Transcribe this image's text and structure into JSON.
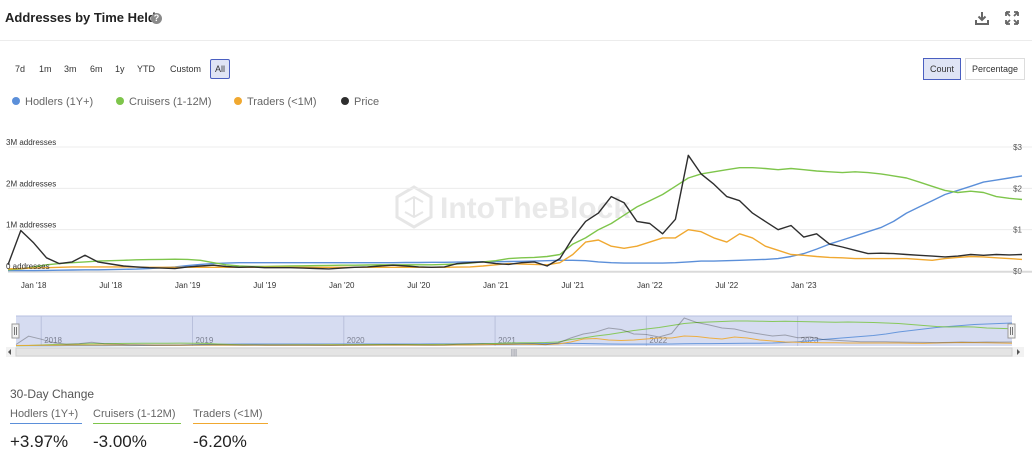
{
  "header": {
    "title": "Addresses by Time Held",
    "help_icon": "question-icon",
    "download_icon": "download-icon",
    "expand_icon": "expand-icon"
  },
  "range_buttons": [
    {
      "label": "7d",
      "active": false
    },
    {
      "label": "1m",
      "active": false
    },
    {
      "label": "3m",
      "active": false
    },
    {
      "label": "6m",
      "active": false
    },
    {
      "label": "1y",
      "active": false
    },
    {
      "label": "YTD",
      "active": false
    },
    {
      "label": "Custom",
      "active": false
    },
    {
      "label": "All",
      "active": true
    }
  ],
  "mode_buttons": [
    {
      "label": "Count",
      "active": true
    },
    {
      "label": "Percentage",
      "active": false
    }
  ],
  "watermark": "IntoTheBlock",
  "colors": {
    "hodlers": "#5b8fd9",
    "cruisers": "#7ec54b",
    "traders": "#f0a830",
    "price": "#2e2e2e",
    "navigator_mask": "#cfd6ee"
  },
  "chart_data": {
    "type": "line",
    "x_start": "2017-11",
    "x_interval": "1 month",
    "x_tick_labels": [
      "Jan '18",
      "Jul '18",
      "Jan '19",
      "Jul '19",
      "Jan '20",
      "Jul '20",
      "Jan '21",
      "Jul '21",
      "Jan '22",
      "Jul '22",
      "Jan '23"
    ],
    "y_left_tick_labels": [
      "0 addresses",
      "1M addresses",
      "2M addresses",
      "3M addresses"
    ],
    "y_left_range": [
      0,
      3000000
    ],
    "y_right_tick_labels": [
      "$0",
      "$1",
      "$2",
      "$3"
    ],
    "y_right_range": [
      0,
      3
    ],
    "grid": true,
    "legend_position": "top-left",
    "series": [
      {
        "name": "Hodlers (1Y+)",
        "axis": "left",
        "values": [
          10000,
          10000,
          10000,
          15000,
          20000,
          25000,
          30000,
          30000,
          35000,
          40000,
          45000,
          60000,
          80000,
          100000,
          130000,
          160000,
          180000,
          190000,
          200000,
          200000,
          200000,
          200000,
          200000,
          200000,
          200000,
          200000,
          200000,
          200000,
          200000,
          200000,
          200000,
          205000,
          205000,
          210000,
          210000,
          215000,
          220000,
          225000,
          225000,
          230000,
          235000,
          240000,
          250000,
          260000,
          260000,
          250000,
          220000,
          200000,
          190000,
          190000,
          190000,
          190000,
          200000,
          220000,
          240000,
          240000,
          250000,
          260000,
          270000,
          280000,
          300000,
          350000,
          420000,
          530000,
          650000,
          750000,
          850000,
          950000,
          1050000,
          1200000,
          1400000,
          1550000,
          1700000,
          1850000,
          1950000,
          2050000,
          2150000,
          2200000,
          2250000,
          2300000
        ]
      },
      {
        "name": "Cruisers (1-12M)",
        "axis": "left",
        "values": [
          30000,
          50000,
          100000,
          150000,
          180000,
          200000,
          220000,
          240000,
          250000,
          260000,
          270000,
          275000,
          280000,
          285000,
          280000,
          260000,
          200000,
          150000,
          120000,
          110000,
          110000,
          115000,
          120000,
          125000,
          130000,
          135000,
          140000,
          140000,
          145000,
          150000,
          150000,
          150000,
          150000,
          150000,
          160000,
          170000,
          190000,
          220000,
          250000,
          300000,
          320000,
          330000,
          350000,
          400000,
          650000,
          800000,
          1000000,
          1150000,
          1350000,
          1550000,
          1700000,
          1850000,
          2050000,
          2250000,
          2350000,
          2400000,
          2450000,
          2500000,
          2500000,
          2480000,
          2450000,
          2480000,
          2450000,
          2420000,
          2400000,
          2380000,
          2400000,
          2380000,
          2350000,
          2300000,
          2250000,
          2150000,
          2050000,
          1950000,
          1900000,
          1930000,
          1900000,
          1800000,
          1760000,
          1730000
        ]
      },
      {
        "name": "Traders (<1M)",
        "axis": "left",
        "values": [
          50000,
          60000,
          70000,
          80000,
          90000,
          100000,
          100000,
          100000,
          100000,
          100000,
          95000,
          90000,
          90000,
          90000,
          90000,
          90000,
          90000,
          90000,
          90000,
          90000,
          90000,
          90000,
          90000,
          90000,
          90000,
          90000,
          90000,
          90000,
          90000,
          90000,
          90000,
          90000,
          90000,
          90000,
          90000,
          95000,
          100000,
          120000,
          150000,
          180000,
          170000,
          160000,
          150000,
          200000,
          400000,
          700000,
          750000,
          600000,
          550000,
          600000,
          700000,
          800000,
          800000,
          1000000,
          950000,
          800000,
          700000,
          900000,
          800000,
          600000,
          500000,
          400000,
          380000,
          350000,
          330000,
          320000,
          300000,
          300000,
          300000,
          300000,
          300000,
          280000,
          260000,
          300000,
          330000,
          350000,
          340000,
          320000,
          300000,
          280000
        ]
      },
      {
        "name": "Price",
        "axis": "right",
        "values": [
          0.15,
          0.98,
          0.68,
          0.32,
          0.18,
          0.22,
          0.38,
          0.22,
          0.17,
          0.12,
          0.1,
          0.08,
          0.07,
          0.06,
          0.1,
          0.12,
          0.14,
          0.11,
          0.09,
          0.1,
          0.08,
          0.08,
          0.08,
          0.07,
          0.06,
          0.05,
          0.07,
          0.09,
          0.1,
          0.12,
          0.14,
          0.12,
          0.1,
          0.09,
          0.1,
          0.18,
          0.2,
          0.22,
          0.18,
          0.16,
          0.2,
          0.22,
          0.12,
          0.3,
          0.8,
          1.2,
          1.4,
          1.8,
          1.65,
          1.2,
          1.15,
          0.9,
          1.25,
          2.8,
          2.35,
          2.1,
          1.8,
          1.7,
          1.4,
          1.2,
          1.0,
          1.1,
          0.82,
          0.9,
          0.65,
          0.58,
          0.5,
          0.42,
          0.43,
          0.42,
          0.4,
          0.38,
          0.36,
          0.34,
          0.36,
          0.4,
          0.38,
          0.4,
          0.39,
          0.4
        ]
      }
    ]
  },
  "navigator": {
    "year_labels": [
      "2018",
      "2019",
      "2020",
      "2021",
      "2022",
      "2023"
    ],
    "scroll_grip": "|||"
  },
  "change": {
    "title": "30-Day Change",
    "items": [
      {
        "label": "Hodlers (1Y+)",
        "value": "+3.97%",
        "color": "#5b8fd9"
      },
      {
        "label": "Cruisers (1-12M)",
        "value": "-3.00%",
        "color": "#7ec54b"
      },
      {
        "label": "Traders (<1M)",
        "value": "-6.20%",
        "color": "#f0a830"
      }
    ]
  }
}
